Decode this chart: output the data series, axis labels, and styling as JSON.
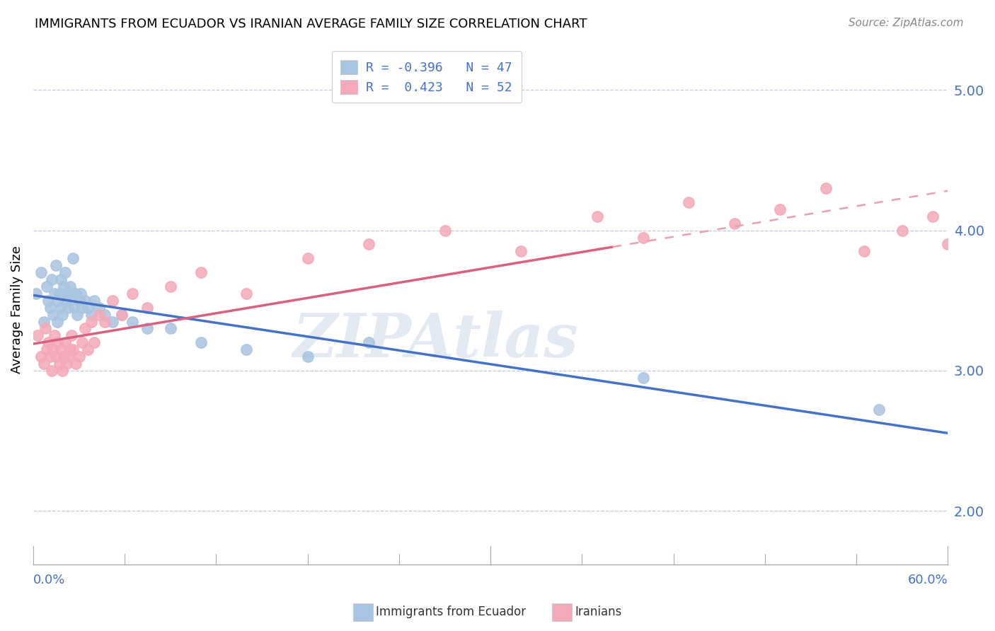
{
  "title": "IMMIGRANTS FROM ECUADOR VS IRANIAN AVERAGE FAMILY SIZE CORRELATION CHART",
  "source": "Source: ZipAtlas.com",
  "ylabel": "Average Family Size",
  "xlim": [
    0.0,
    0.6
  ],
  "ylim": [
    1.62,
    5.25
  ],
  "yticks_right": [
    2.0,
    3.0,
    4.0,
    5.0
  ],
  "legend_line1": "R = -0.396   N = 47",
  "legend_line2": "R =  0.423   N = 52",
  "ecuador_color": "#a8c4e0",
  "iranian_color": "#f4a8b8",
  "ecuador_line_color": "#4472c4",
  "iranian_line_color": "#d96080",
  "iranian_dash_color": "#e8a0b0",
  "watermark": "ZIPAtlas",
  "watermark_color": "#ccd8e8",
  "background": "#ffffff",
  "grid_color": "#c0c8d8",
  "ecuador_x": [
    0.002,
    0.005,
    0.007,
    0.009,
    0.01,
    0.011,
    0.012,
    0.013,
    0.014,
    0.015,
    0.016,
    0.016,
    0.017,
    0.018,
    0.018,
    0.019,
    0.02,
    0.021,
    0.021,
    0.022,
    0.023,
    0.024,
    0.025,
    0.026,
    0.027,
    0.028,
    0.029,
    0.03,
    0.031,
    0.032,
    0.034,
    0.036,
    0.038,
    0.04,
    0.043,
    0.047,
    0.052,
    0.058,
    0.065,
    0.075,
    0.09,
    0.11,
    0.14,
    0.18,
    0.22,
    0.4,
    0.555
  ],
  "ecuador_y": [
    3.55,
    3.7,
    3.35,
    3.6,
    3.5,
    3.45,
    3.65,
    3.4,
    3.55,
    3.75,
    3.5,
    3.35,
    3.55,
    3.65,
    3.45,
    3.4,
    3.6,
    3.55,
    3.7,
    3.5,
    3.45,
    3.6,
    3.55,
    3.8,
    3.45,
    3.55,
    3.4,
    3.5,
    3.55,
    3.45,
    3.5,
    3.45,
    3.4,
    3.5,
    3.45,
    3.4,
    3.35,
    3.4,
    3.35,
    3.3,
    3.3,
    3.2,
    3.15,
    3.1,
    3.2,
    2.95,
    2.72
  ],
  "iranian_x": [
    0.003,
    0.005,
    0.007,
    0.008,
    0.009,
    0.01,
    0.011,
    0.012,
    0.013,
    0.014,
    0.015,
    0.016,
    0.017,
    0.018,
    0.019,
    0.02,
    0.021,
    0.022,
    0.023,
    0.024,
    0.025,
    0.026,
    0.028,
    0.03,
    0.032,
    0.034,
    0.036,
    0.038,
    0.04,
    0.043,
    0.047,
    0.052,
    0.058,
    0.065,
    0.075,
    0.09,
    0.11,
    0.14,
    0.18,
    0.22,
    0.27,
    0.32,
    0.37,
    0.4,
    0.43,
    0.46,
    0.49,
    0.52,
    0.545,
    0.57,
    0.59,
    0.6
  ],
  "iranian_y": [
    3.25,
    3.1,
    3.05,
    3.3,
    3.15,
    3.2,
    3.1,
    3.0,
    3.15,
    3.25,
    3.1,
    3.2,
    3.05,
    3.15,
    3.0,
    3.1,
    3.2,
    3.05,
    3.1,
    3.15,
    3.25,
    3.15,
    3.05,
    3.1,
    3.2,
    3.3,
    3.15,
    3.35,
    3.2,
    3.4,
    3.35,
    3.5,
    3.4,
    3.55,
    3.45,
    3.6,
    3.7,
    3.55,
    3.8,
    3.9,
    4.0,
    3.85,
    4.1,
    3.95,
    4.2,
    4.05,
    4.15,
    4.3,
    3.85,
    4.0,
    4.1,
    3.9
  ]
}
